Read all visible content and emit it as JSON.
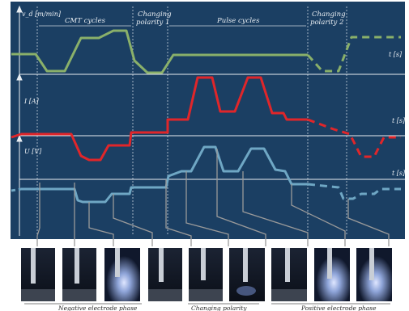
{
  "phases": {
    "cmt": "CMT cycles",
    "changing1_line1": "Changing",
    "changing1_line2": "polarity 1",
    "pulse": "Pulse cycles",
    "changing2_line1": "Changing",
    "changing2_line2": "polarity 2"
  },
  "axes": {
    "wire_speed": "v_d [m/min]",
    "current": "I [A]",
    "voltage": "U [V]",
    "time_top": "t [s]",
    "time_mid": "t [s]",
    "time_bottom": "t [s]"
  },
  "footer": {
    "negative": "Negative electrode phase",
    "changing": "Changing polarity",
    "positive": "Positive electrode phase"
  },
  "colors": {
    "panel": "#1b3f63",
    "wire_speed": "#8ab06a",
    "current": "#e0262a",
    "voltage": "#6fa7c4",
    "grid": "#c9d3dc",
    "connector": "#9a9a9a"
  },
  "photos": {
    "count": 9
  }
}
